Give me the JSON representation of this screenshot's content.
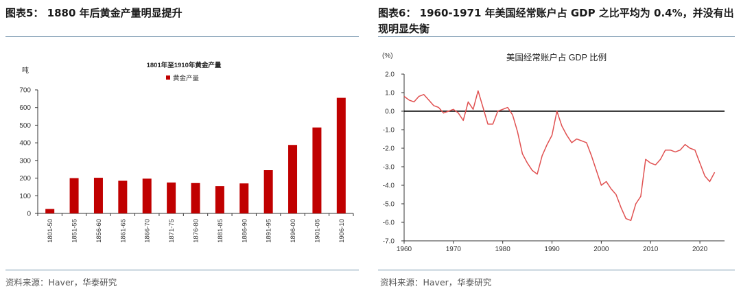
{
  "left_panel": {
    "figure_title": "图表5： 1880 年后黄金产量明显提升",
    "source": "资料来源：Haver，华泰研究",
    "chart_data": {
      "type": "bar",
      "title": "1801年至1910年黄金产量",
      "unit_label": "吨",
      "legend": "黄金产量",
      "legend_position": "top-center",
      "categories": [
        "1801-50",
        "1851-55",
        "1856-60",
        "1861-65",
        "1866-70",
        "1871-75",
        "1876-80",
        "1881-85",
        "1886-90",
        "1891-95",
        "1896-00",
        "1901-05",
        "1906-10"
      ],
      "values": [
        25,
        200,
        202,
        185,
        197,
        175,
        172,
        155,
        170,
        245,
        388,
        487,
        655
      ],
      "ylim": [
        0,
        700
      ],
      "yticks": [
        0,
        100,
        200,
        300,
        400,
        500,
        600,
        700
      ],
      "bar_color": "#c00000",
      "grid": false
    }
  },
  "right_panel": {
    "figure_title": "图表6： 1960-1971 年美国经常账户占 GDP 之比平均为 0.4%，并没有出现明显失衡",
    "source": "资料来源：Haver，华泰研究",
    "chart_data": {
      "type": "line",
      "title": "美国经常账户占 GDP 比例",
      "unit_label": "(%)",
      "x": [
        1960,
        1961,
        1962,
        1963,
        1964,
        1965,
        1966,
        1967,
        1968,
        1969,
        1970,
        1971,
        1972,
        1973,
        1974,
        1975,
        1976,
        1977,
        1978,
        1979,
        1980,
        1981,
        1982,
        1983,
        1984,
        1985,
        1986,
        1987,
        1988,
        1989,
        1990,
        1991,
        1992,
        1993,
        1994,
        1995,
        1996,
        1997,
        1998,
        1999,
        2000,
        2001,
        2002,
        2003,
        2004,
        2005,
        2006,
        2007,
        2008,
        2009,
        2010,
        2011,
        2012,
        2013,
        2014,
        2015,
        2016,
        2017,
        2018,
        2019,
        2020,
        2021,
        2022,
        2023
      ],
      "y": [
        0.8,
        0.6,
        0.5,
        0.8,
        0.9,
        0.6,
        0.3,
        0.2,
        -0.1,
        0.0,
        0.1,
        -0.1,
        -0.5,
        0.5,
        0.1,
        1.1,
        0.2,
        -0.7,
        -0.7,
        0.0,
        0.1,
        0.2,
        -0.2,
        -1.1,
        -2.3,
        -2.8,
        -3.2,
        -3.4,
        -2.4,
        -1.8,
        -1.3,
        0.0,
        -0.8,
        -1.3,
        -1.7,
        -1.5,
        -1.6,
        -1.7,
        -2.4,
        -3.2,
        -4.0,
        -3.8,
        -4.2,
        -4.5,
        -5.2,
        -5.8,
        -5.9,
        -5.0,
        -4.6,
        -2.6,
        -2.8,
        -2.9,
        -2.6,
        -2.1,
        -2.1,
        -2.2,
        -2.1,
        -1.8,
        -2.0,
        -2.1,
        -2.8,
        -3.5,
        -3.8,
        -3.3
      ],
      "xlim": [
        1960,
        2025
      ],
      "xticks": [
        1960,
        1970,
        1980,
        1990,
        2000,
        2010,
        2020
      ],
      "ylim": [
        -7.0,
        2.0
      ],
      "yticks": [
        2.0,
        1.0,
        0.0,
        -1.0,
        -2.0,
        -3.0,
        -4.0,
        -5.0,
        -6.0,
        -7.0
      ],
      "line_color": "#e05050",
      "grid": false
    }
  }
}
